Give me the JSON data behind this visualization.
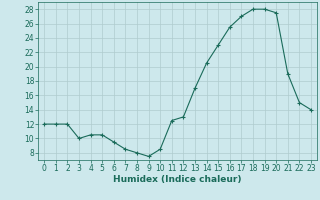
{
  "x": [
    0,
    1,
    2,
    3,
    4,
    5,
    6,
    7,
    8,
    9,
    10,
    11,
    12,
    13,
    14,
    15,
    16,
    17,
    18,
    19,
    20,
    21,
    22,
    23
  ],
  "y": [
    12,
    12,
    12,
    10,
    10.5,
    10.5,
    9.5,
    8.5,
    8.0,
    7.5,
    8.5,
    12.5,
    13,
    17,
    20.5,
    23,
    25.5,
    27,
    28,
    28,
    27.5,
    19,
    15,
    14
  ],
  "line_color": "#1a6b5a",
  "marker": "+",
  "bg_color": "#cde8ec",
  "grid_color": "#b0ccce",
  "xlabel": "Humidex (Indice chaleur)",
  "ylim": [
    7,
    29
  ],
  "xlim": [
    -0.5,
    23.5
  ],
  "yticks": [
    8,
    10,
    12,
    14,
    16,
    18,
    20,
    22,
    24,
    26,
    28
  ],
  "xticks": [
    0,
    1,
    2,
    3,
    4,
    5,
    6,
    7,
    8,
    9,
    10,
    11,
    12,
    13,
    14,
    15,
    16,
    17,
    18,
    19,
    20,
    21,
    22,
    23
  ],
  "label_fontsize": 6.5,
  "tick_fontsize": 5.5
}
